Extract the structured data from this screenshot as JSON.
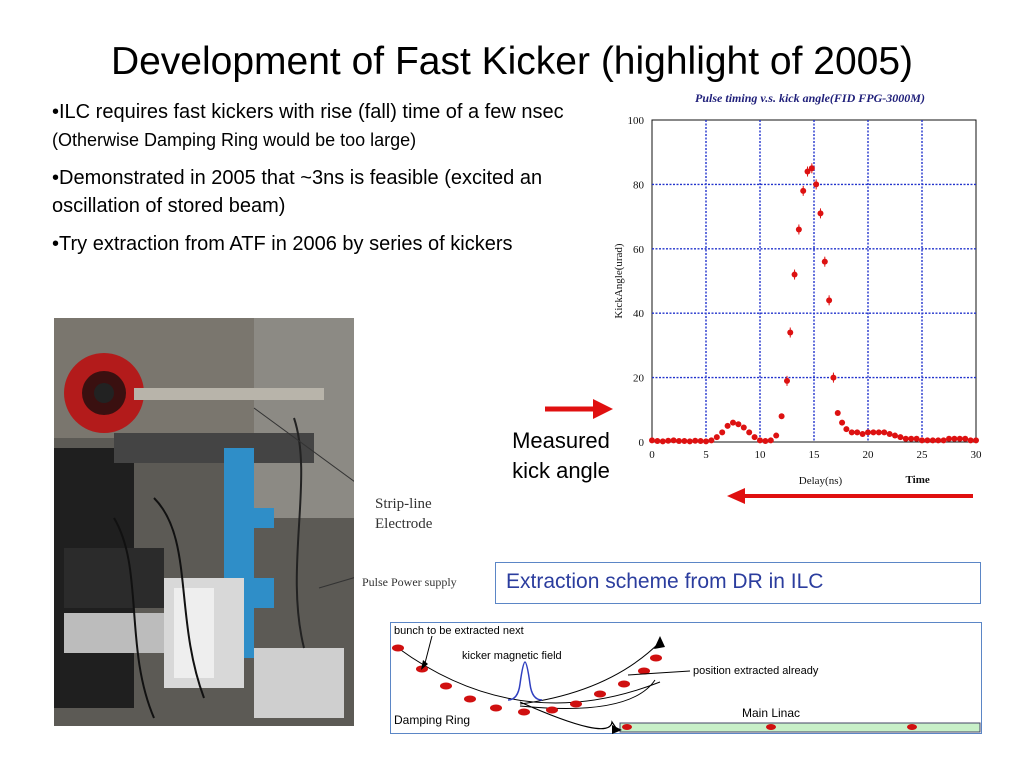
{
  "slide": {
    "title": "Development of Fast Kicker (highlight of 2005)",
    "bullets": [
      {
        "main": "•ILC requires fast kickers with rise (fall) time of a few nsec ",
        "note": "(Otherwise Damping Ring would be too large)"
      },
      {
        "main": "•Demonstrated in 2005 that ~3ns is feasible (excited an oscillation of stored beam)"
      },
      {
        "main": "•Try extraction from ATF in 2006 by series of kickers"
      }
    ],
    "measured_label": "Measured kick angle",
    "extraction_caption": "Extraction scheme from DR in ILC"
  },
  "photo": {
    "strip_line_label": "Strip-line Electrode",
    "pulse_power_label": "Pulse Power supply"
  },
  "scheme": {
    "bunch_label": "bunch to be extracted next",
    "kicker_label": "kicker magnetic field",
    "position_label": "position extracted already",
    "damping_ring_label": "Damping Ring",
    "main_linac_label": "Main Linac"
  },
  "chart_data": {
    "type": "scatter",
    "title": "Pulse timing v.s. kick angle(FID FPG-3000M)",
    "xlabel": "Delay(ns)",
    "ylabel": "KickAngle(urad)",
    "extra_label": "Time",
    "xlim": [
      0,
      30
    ],
    "ylim": [
      0,
      100
    ],
    "xticks": [
      0,
      5,
      10,
      15,
      20,
      25,
      30
    ],
    "yticks": [
      0,
      20,
      40,
      60,
      80,
      100
    ],
    "grid": true,
    "marker_color": "#dd1111",
    "grid_color": "#2233cc",
    "series": [
      {
        "x": [
          0,
          0.5,
          1,
          1.5,
          2,
          2.5,
          3,
          3.5,
          4,
          4.5,
          5,
          5.5,
          6,
          6.5,
          7,
          7.5,
          8,
          8.5,
          9,
          9.5,
          10,
          10.5,
          11,
          11.5,
          12,
          12.5,
          12.8,
          13.2,
          13.6,
          14,
          14.4,
          14.8,
          15.2,
          15.6,
          16,
          16.4,
          16.8,
          17.2,
          17.6,
          18,
          18.5,
          19,
          19.5,
          20,
          20.5,
          21,
          21.5,
          22,
          22.5,
          23,
          23.5,
          24,
          24.5,
          25,
          25.5,
          26,
          26.5,
          27,
          27.5,
          28,
          28.5,
          29,
          29.5,
          30
        ],
        "y": [
          0.5,
          0.3,
          0.2,
          0.4,
          0.5,
          0.3,
          0.3,
          0.2,
          0.4,
          0.3,
          0.2,
          0.5,
          1.5,
          3,
          5,
          6,
          5.5,
          4.5,
          3,
          1.5,
          0.5,
          0.3,
          0.5,
          2,
          8,
          19,
          34,
          52,
          66,
          78,
          84,
          85,
          80,
          71,
          56,
          44,
          20,
          9,
          6,
          4,
          3,
          3,
          2.5,
          3,
          3,
          3,
          3,
          2.5,
          2,
          1.5,
          1,
          1,
          1,
          0.5,
          0.5,
          0.5,
          0.5,
          0.5,
          1,
          1,
          1,
          1,
          0.5,
          0.5
        ]
      }
    ]
  }
}
